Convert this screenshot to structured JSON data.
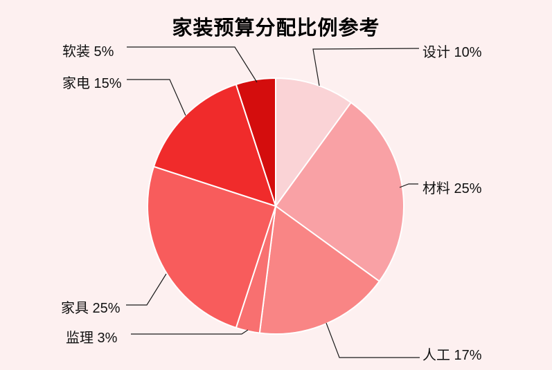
{
  "page": {
    "background_color": "#fdf0f0"
  },
  "title": "家装预算分配比例参考",
  "chart_data": {
    "type": "pie",
    "title": "家装预算分配比例参考",
    "legend_position": "none",
    "label_style": "outside-with-leader-lines",
    "start_angle": "12-oclock",
    "direction": "clockwise",
    "total": 100,
    "slices": [
      {
        "label": "设计",
        "value": 10,
        "display": "设计 10%",
        "color": "#fad3d6"
      },
      {
        "label": "材料",
        "value": 25,
        "display": "材料 25%",
        "color": "#f9a1a5"
      },
      {
        "label": "人工",
        "value": 17,
        "display": "人工 17%",
        "color": "#f98585"
      },
      {
        "label": "监理",
        "value": 3,
        "display": "监理 3%",
        "color": "#f87070"
      },
      {
        "label": "家具",
        "value": 25,
        "display": "家具 25%",
        "color": "#f85c5c"
      },
      {
        "label": "家电",
        "value": 15,
        "display": "家电 15%",
        "color": "#f02b2b"
      },
      {
        "label": "软装",
        "value": 5,
        "display": "软装 5%",
        "color": "#d40d0d"
      }
    ],
    "leader_line_color": "#1a1a1a",
    "slice_separator_color": "#ffffff"
  }
}
